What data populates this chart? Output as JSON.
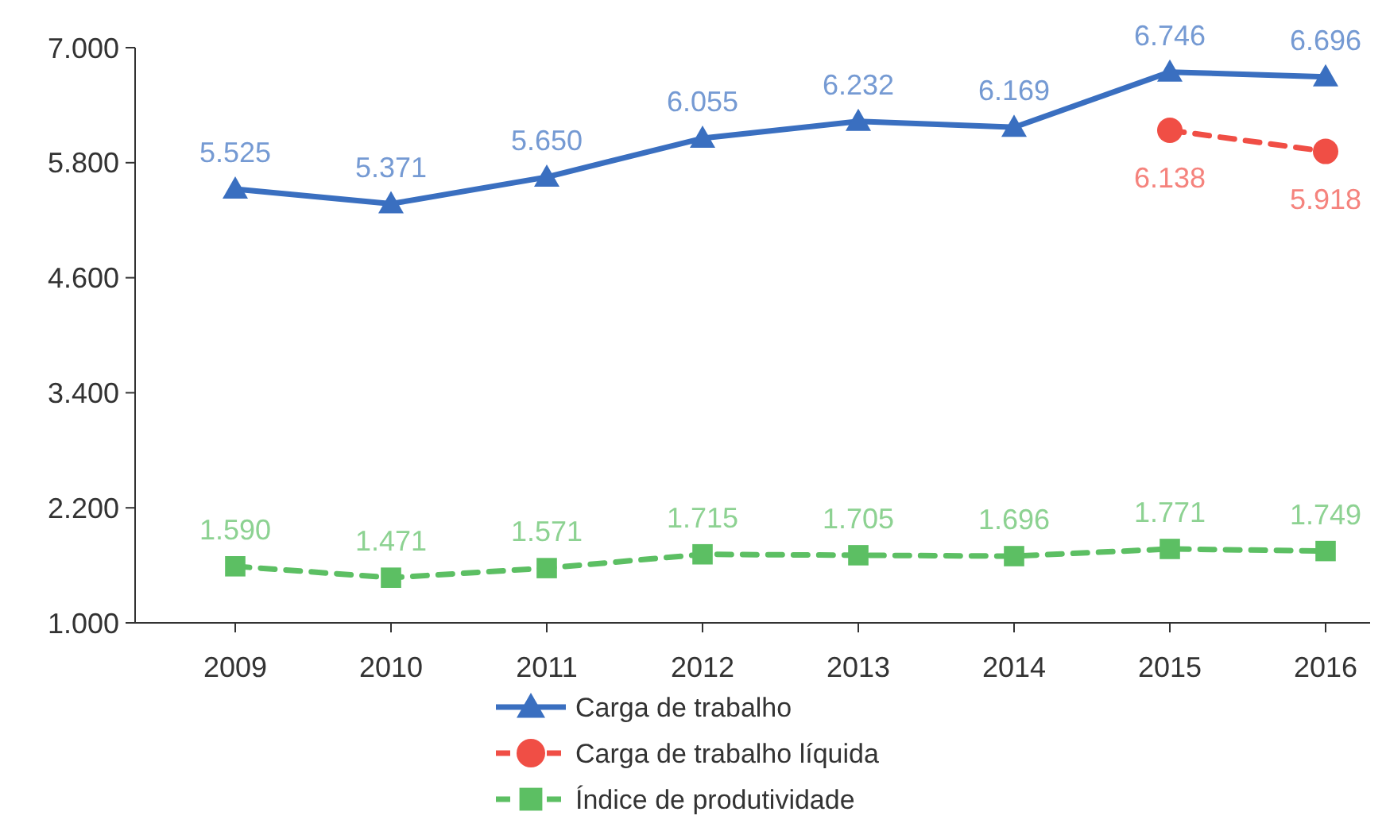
{
  "chart_data": {
    "type": "line",
    "categories": [
      "2009",
      "2010",
      "2011",
      "2012",
      "2013",
      "2014",
      "2015",
      "2016"
    ],
    "ylim": [
      1000,
      7000
    ],
    "yticks": [
      {
        "value": 1000,
        "label": "1.000"
      },
      {
        "value": 2200,
        "label": "2.200"
      },
      {
        "value": 3400,
        "label": "3.400"
      },
      {
        "value": 4600,
        "label": "4.600"
      },
      {
        "value": 5800,
        "label": "5.800"
      },
      {
        "value": 7000,
        "label": "7.000"
      }
    ],
    "grid": false,
    "legend": "bottom",
    "series": [
      {
        "name": "Carga de trabalho",
        "color": "#3a6fc0",
        "marker": "triangle",
        "line_style": "solid",
        "values": [
          5525,
          5371,
          5650,
          6055,
          6232,
          6169,
          6746,
          6696
        ],
        "value_labels": [
          "5.525",
          "5.371",
          "5.650",
          "6.055",
          "6.232",
          "6.169",
          "6.746",
          "6.696"
        ]
      },
      {
        "name": "Carga de trabalho líquida",
        "color": "#f04e45",
        "marker": "circle",
        "line_style": "dashed",
        "values": [
          null,
          null,
          null,
          null,
          null,
          null,
          6138,
          5918
        ],
        "value_labels": [
          null,
          null,
          null,
          null,
          null,
          null,
          "6.138",
          "5.918"
        ]
      },
      {
        "name": "Índice de produtividade",
        "color": "#5cbf63",
        "marker": "square",
        "line_style": "dashed",
        "values": [
          1590,
          1471,
          1571,
          1715,
          1705,
          1696,
          1771,
          1749
        ],
        "value_labels": [
          "1.590",
          "1.471",
          "1.571",
          "1.715",
          "1.705",
          "1.696",
          "1.771",
          "1.749"
        ]
      }
    ]
  }
}
